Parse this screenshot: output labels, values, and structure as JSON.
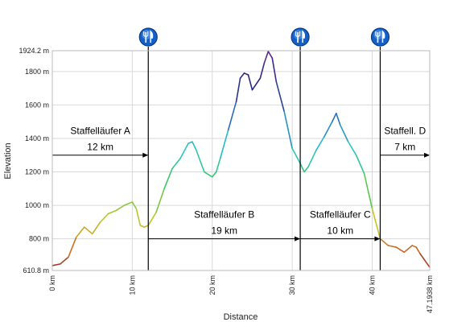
{
  "chart_data": {
    "type": "line",
    "title": "",
    "xlabel": "Distance",
    "ylabel": "Elevation",
    "xlim": [
      0,
      47.1938
    ],
    "ylim": [
      610.8,
      1924.2
    ],
    "y_ticks": [
      {
        "value": 610.8,
        "label": "610.8 m"
      },
      {
        "value": 800,
        "label": "800 m"
      },
      {
        "value": 1000,
        "label": "1000 m"
      },
      {
        "value": 1200,
        "label": "1200 m"
      },
      {
        "value": 1400,
        "label": "1400 m"
      },
      {
        "value": 1600,
        "label": "1600 m"
      },
      {
        "value": 1800,
        "label": "1800 m"
      },
      {
        "value": 1924.2,
        "label": "1924.2 m"
      }
    ],
    "x_ticks": [
      {
        "value": 0,
        "label": "0 km"
      },
      {
        "value": 10,
        "label": "10 km"
      },
      {
        "value": 20,
        "label": "20 km"
      },
      {
        "value": 30,
        "label": "30 km"
      },
      {
        "value": 40,
        "label": "40 km"
      },
      {
        "value": 47.1938,
        "label": "47.1938 km"
      }
    ],
    "grid": true,
    "series": [
      {
        "color_scale": "elevation (low = red/orange, high = dark purple)",
        "x": [
          0,
          1,
          2,
          3,
          4,
          5,
          6,
          7,
          8,
          9,
          10,
          10.5,
          11,
          11.5,
          12,
          13,
          14,
          15,
          16,
          17,
          17.5,
          18,
          19,
          20,
          20.5,
          21,
          22,
          23,
          23.5,
          24,
          24.5,
          25,
          26,
          26.5,
          27,
          27.5,
          28,
          29,
          30,
          31,
          31.5,
          32,
          33,
          34,
          35,
          35.5,
          36,
          37,
          38,
          39,
          40,
          41,
          42,
          43,
          44,
          45,
          45.5,
          46,
          47.1938
        ],
        "y": [
          640,
          650,
          690,
          810,
          870,
          830,
          900,
          950,
          970,
          1000,
          1020,
          980,
          880,
          870,
          880,
          960,
          1100,
          1220,
          1280,
          1370,
          1380,
          1330,
          1200,
          1170,
          1200,
          1280,
          1450,
          1620,
          1760,
          1790,
          1780,
          1690,
          1760,
          1850,
          1920,
          1880,
          1740,
          1560,
          1340,
          1250,
          1200,
          1230,
          1330,
          1410,
          1500,
          1550,
          1480,
          1380,
          1300,
          1190,
          980,
          800,
          760,
          750,
          720,
          760,
          750,
          710,
          630
        ]
      }
    ],
    "annotations": [
      {
        "type": "marker",
        "x": 12,
        "symbol": "fork-knife"
      },
      {
        "type": "marker",
        "x": 31,
        "symbol": "fork-knife"
      },
      {
        "type": "marker",
        "x": 41,
        "symbol": "fork-knife"
      },
      {
        "type": "arrow",
        "x_from": 0,
        "x_to": 12,
        "y": 1300,
        "label": "Staffelläufer A",
        "sublabel": "12 km"
      },
      {
        "type": "arrow",
        "x_from": 12,
        "x_to": 31,
        "y": 800,
        "label": "Staffelläufer B",
        "sublabel": "19 km"
      },
      {
        "type": "arrow",
        "x_from": 31,
        "x_to": 41,
        "y": 800,
        "label": "Staffelläufer C",
        "sublabel": "10 km"
      },
      {
        "type": "arrow",
        "x_from": 41,
        "x_to": 47.1938,
        "y": 1300,
        "label": "Staffell. D",
        "sublabel": "7 km"
      }
    ]
  }
}
